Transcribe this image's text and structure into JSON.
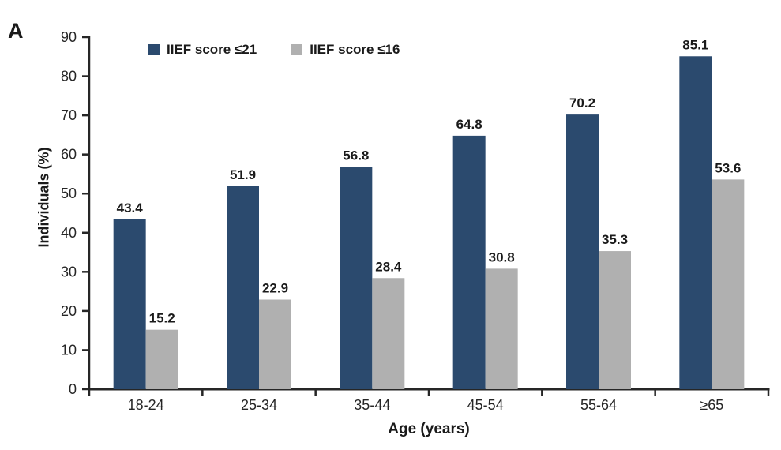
{
  "panel_label": "A",
  "chart_data": {
    "type": "bar",
    "title": "",
    "xlabel": "Age (years)",
    "ylabel": "Individuals (%)",
    "categories": [
      "18-24",
      "25-34",
      "35-44",
      "45-54",
      "55-64",
      "≥65"
    ],
    "series": [
      {
        "name": "IIEF score ≤21",
        "color": "#2b4a6e",
        "values": [
          43.4,
          51.9,
          56.8,
          64.8,
          70.2,
          85.1
        ]
      },
      {
        "name": "IIEF score ≤16",
        "color": "#b0b0b0",
        "values": [
          15.2,
          22.9,
          28.4,
          30.8,
          35.3,
          53.6
        ]
      }
    ],
    "ylim": [
      0,
      90
    ],
    "yticks": [
      0,
      10,
      20,
      30,
      40,
      50,
      60,
      70,
      80,
      90
    ],
    "legend_position": "top-left-inside",
    "grid": false,
    "value_labels_shown": true,
    "axis_color": "#262626",
    "value_label_color": "#1a1a1a"
  }
}
